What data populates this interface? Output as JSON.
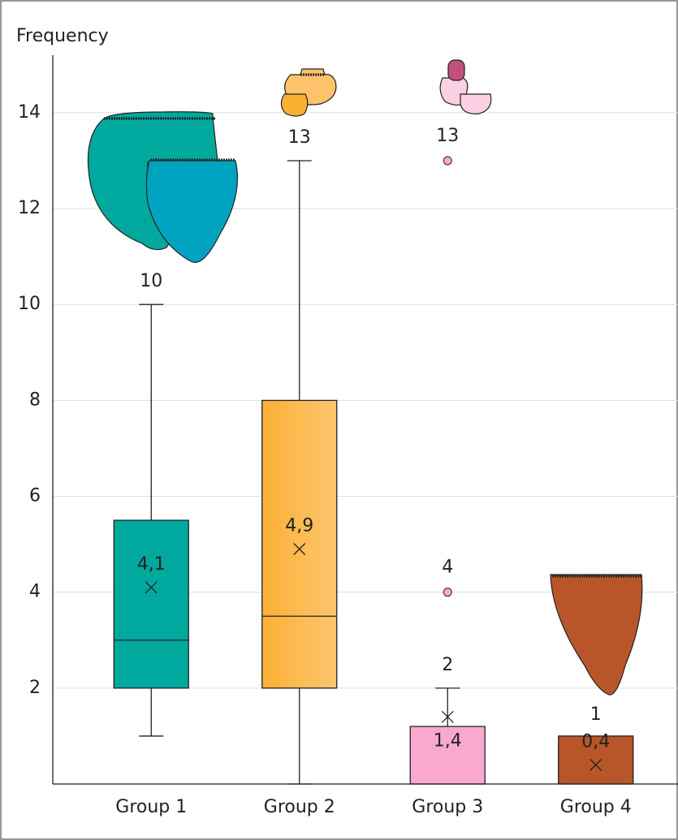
{
  "chart_data": {
    "type": "box",
    "y_label": "Frequency",
    "ylim": [
      0,
      15.2
    ],
    "yticks": [
      2,
      4,
      6,
      8,
      10,
      12,
      14
    ],
    "grid": true,
    "boxes": [
      {
        "name": "Group 1",
        "color": "#00a89d",
        "whisker_low": 1,
        "q1": 2,
        "median": 3,
        "q3": 5.5,
        "whisker_high": 10,
        "mean": 4.1,
        "mean_label": "4,1",
        "outliers": []
      },
      {
        "name": "Group 2",
        "color": "#fbb034",
        "whisker_low": 0,
        "q1": 2,
        "median": 3.5,
        "q3": 8,
        "whisker_high": 13,
        "mean": 4.9,
        "mean_label": "4,9",
        "outliers": []
      },
      {
        "name": "Group 3",
        "color": "#f9a8cf",
        "q1": 0,
        "q3": 1.2,
        "whisker_high": 2,
        "mean": 1.4,
        "mean_label": "1,4",
        "outliers": [
          4,
          13
        ]
      },
      {
        "name": "Group 4",
        "color": "#b8562a",
        "q1": 0,
        "q3": 1,
        "mean": 0.4,
        "mean_label": "0,4",
        "outliers": []
      }
    ]
  }
}
